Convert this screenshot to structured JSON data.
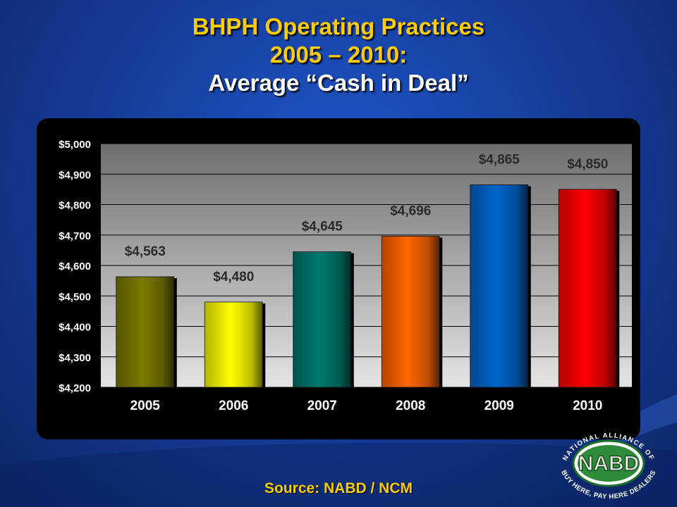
{
  "title": {
    "line1": "BHPH Operating Practices",
    "line2": "2005 – 2010:",
    "line3": "Average “Cash in Deal”"
  },
  "source": "Source: NABD / NCM",
  "logo": {
    "top_text": "NATIONAL ALLIANCE OF",
    "center_text": "NABD",
    "bottom_text": "BUY HERE, PAY HERE DEALERS"
  },
  "chart_data": {
    "type": "bar",
    "categories": [
      "2005",
      "2006",
      "2007",
      "2008",
      "2009",
      "2010"
    ],
    "values": [
      4563,
      4480,
      4645,
      4696,
      4865,
      4850
    ],
    "value_labels": [
      "$4,563",
      "$4,480",
      "$4,645",
      "$4,696",
      "$4,865",
      "$4,850"
    ],
    "bar_colors": [
      "#7a7a00",
      "#ffff00",
      "#007a70",
      "#ff6600",
      "#0066cc",
      "#ff0000"
    ],
    "ylim": [
      4200,
      5000
    ],
    "yticks": [
      4200,
      4300,
      4400,
      4500,
      4600,
      4700,
      4800,
      4900,
      5000
    ],
    "ytick_labels": [
      "$4,200",
      "$4,300",
      "$4,400",
      "$4,500",
      "$4,600",
      "$4,700",
      "$4,800",
      "$4,900",
      "$5,000"
    ],
    "grid": true,
    "xlabel": "",
    "ylabel": ""
  }
}
